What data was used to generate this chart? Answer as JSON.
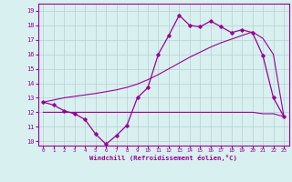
{
  "x_values": [
    0,
    1,
    2,
    3,
    4,
    5,
    6,
    7,
    8,
    9,
    10,
    11,
    12,
    13,
    14,
    15,
    16,
    17,
    18,
    19,
    20,
    21,
    22,
    23
  ],
  "windchill": [
    12.7,
    12.5,
    12.1,
    11.9,
    11.5,
    10.5,
    9.8,
    10.4,
    11.1,
    13.0,
    13.7,
    16.0,
    17.3,
    18.7,
    18.0,
    17.9,
    18.3,
    17.9,
    17.5,
    17.7,
    17.5,
    15.9,
    13.0,
    11.7
  ],
  "flat_line": [
    12.0,
    12.0,
    12.0,
    12.0,
    12.0,
    12.0,
    12.0,
    12.0,
    12.0,
    12.0,
    12.0,
    12.0,
    12.0,
    12.0,
    12.0,
    12.0,
    12.0,
    12.0,
    12.0,
    12.0,
    12.0,
    11.9,
    11.9,
    11.7
  ],
  "trend_diag": [
    12.7,
    12.85,
    13.0,
    13.1,
    13.2,
    13.3,
    13.42,
    13.55,
    13.72,
    13.95,
    14.25,
    14.6,
    15.0,
    15.4,
    15.8,
    16.15,
    16.5,
    16.8,
    17.05,
    17.3,
    17.55,
    17.1,
    16.0,
    11.7
  ],
  "line_color": "#990099",
  "background_color": "#d8f0f0",
  "grid_color": "#b8d0d0",
  "xlabel": "Windchill (Refroidissement éolien,°C)",
  "ylim": [
    9.7,
    19.5
  ],
  "xlim": [
    -0.5,
    23.5
  ],
  "yticks": [
    10,
    11,
    12,
    13,
    14,
    15,
    16,
    17,
    18,
    19
  ],
  "xticks": [
    0,
    1,
    2,
    3,
    4,
    5,
    6,
    7,
    8,
    9,
    10,
    11,
    12,
    13,
    14,
    15,
    16,
    17,
    18,
    19,
    20,
    21,
    22,
    23
  ]
}
